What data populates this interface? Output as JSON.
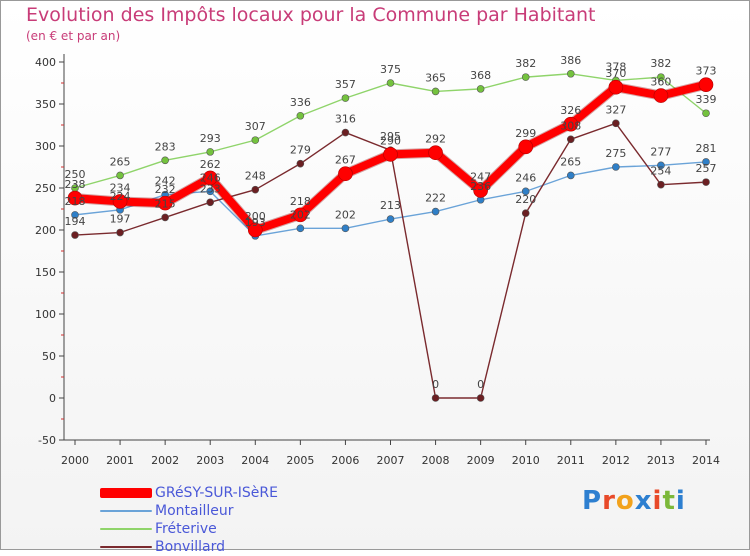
{
  "header": {
    "title": "Evolution des Impôts locaux pour la Commune par Habitant",
    "subtitle": "(en € et par an)"
  },
  "logo": {
    "letters": [
      "P",
      "r",
      "o",
      "x",
      "i",
      "t",
      "i"
    ],
    "colors": [
      "#2d7fd0",
      "#e84a2a",
      "#f2a21c",
      "#2d7fd0",
      "#e84a2a",
      "#7cb83a",
      "#2d7fd0"
    ]
  },
  "chart_data": {
    "type": "line",
    "title": "Evolution des Impôts locaux pour la Commune par Habitant",
    "subtitle": "(en € et par an)",
    "x": [
      "2000",
      "2001",
      "2002",
      "2003",
      "2004",
      "2005",
      "2006",
      "2007",
      "2008",
      "2009",
      "2010",
      "2011",
      "2012",
      "2013",
      "2014"
    ],
    "ylim": [
      -50,
      400
    ],
    "yticks": [
      -50,
      0,
      50,
      100,
      150,
      200,
      250,
      300,
      350,
      400
    ],
    "grid": false,
    "legend_position": "bottom-left",
    "series": [
      {
        "name": "GRéSY-SUR-ISèRE",
        "color": "#ff0000",
        "marker": "#ff0000",
        "width": 8,
        "values": [
          238,
          234,
          232,
          262,
          200,
          218,
          267,
          290,
          292,
          247,
          299,
          326,
          370,
          360,
          373
        ]
      },
      {
        "name": "Montailleur",
        "color": "#6aa3d8",
        "marker": "#2f7fc7",
        "width": 1.4,
        "values": [
          218,
          224,
          242,
          246,
          193,
          202,
          202,
          213,
          222,
          236,
          246,
          265,
          275,
          277,
          281
        ]
      },
      {
        "name": "Fréterive",
        "color": "#8fd46a",
        "marker": "#74c23e",
        "width": 1.4,
        "values": [
          250,
          265,
          283,
          293,
          307,
          336,
          357,
          375,
          365,
          368,
          382,
          386,
          378,
          382,
          339
        ]
      },
      {
        "name": "Bonvillard",
        "color": "#7a2a2e",
        "marker": "#6b1f22",
        "width": 1.4,
        "values": [
          194,
          197,
          215,
          233,
          248,
          279,
          316,
          295,
          0,
          0,
          220,
          308,
          327,
          254,
          257
        ]
      }
    ]
  }
}
